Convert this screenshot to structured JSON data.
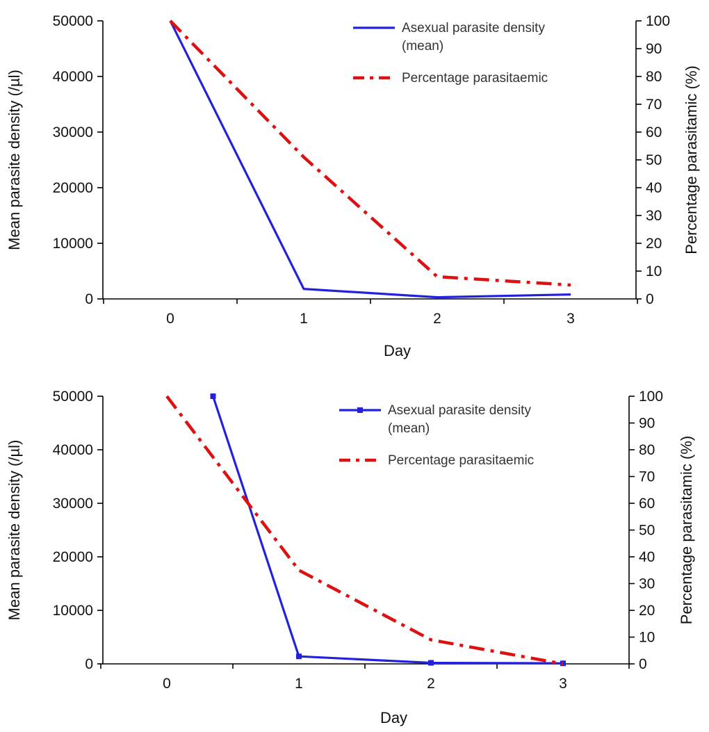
{
  "chart_data": [
    {
      "type": "line",
      "xlabel": "Day",
      "ylabel": "Mean parasite density (/µl)",
      "y2label": "Percentage parasitamic (%)",
      "x": [
        0,
        1,
        2,
        3
      ],
      "x_ticks": [
        "0",
        "1",
        "2",
        "3"
      ],
      "ylim": [
        0,
        50000
      ],
      "y_ticks": [
        "0",
        "10000",
        "20000",
        "30000",
        "40000",
        "50000"
      ],
      "y2lim": [
        0,
        100
      ],
      "y2_ticks": [
        "0",
        "10",
        "20",
        "30",
        "40",
        "50",
        "60",
        "70",
        "80",
        "90",
        "100"
      ],
      "legend_position": "top-right",
      "grid": false,
      "series": [
        {
          "name": "Asexual parasite density (mean)",
          "legend_lines": [
            "Asexual parasite density",
            "(mean)"
          ],
          "axis": "left",
          "color": "#2222dd",
          "style": "solid",
          "markers": false,
          "x": [
            0,
            1,
            2,
            3
          ],
          "values": [
            50000,
            1800,
            300,
            800
          ]
        },
        {
          "name": "Percentage parasitaemic",
          "legend_lines": [
            "Percentage parasitaemic"
          ],
          "axis": "right",
          "color": "#dd1111",
          "style": "dash-dot",
          "markers": false,
          "x": [
            0,
            1,
            2,
            3
          ],
          "values": [
            100,
            51,
            8,
            5
          ]
        }
      ]
    },
    {
      "type": "line",
      "xlabel": "Day",
      "ylabel": "Mean parasite density (/µl)",
      "y2label": "Percentage parasitamic (%)",
      "x": [
        0,
        1,
        2,
        3
      ],
      "x_ticks": [
        "0",
        "1",
        "2",
        "3"
      ],
      "ylim": [
        0,
        50000
      ],
      "y_ticks": [
        "0",
        "10000",
        "20000",
        "30000",
        "40000",
        "50000"
      ],
      "y2lim": [
        0,
        100
      ],
      "y2_ticks": [
        "0",
        "10",
        "20",
        "30",
        "40",
        "50",
        "60",
        "70",
        "80",
        "90",
        "100"
      ],
      "legend_position": "top-right",
      "grid": false,
      "series": [
        {
          "name": "Asexual parasite density (mean)",
          "legend_lines": [
            "Asexual parasite density",
            "(mean)"
          ],
          "axis": "left",
          "color": "#2222dd",
          "style": "solid",
          "markers": true,
          "x": [
            0.35,
            1,
            2,
            3
          ],
          "values": [
            50000,
            1400,
            200,
            100
          ]
        },
        {
          "name": "Percentage parasitaemic",
          "legend_lines": [
            "Percentage parasitaemic"
          ],
          "axis": "right",
          "color": "#dd1111",
          "style": "dash-dot",
          "markers": false,
          "x": [
            0,
            1,
            2,
            3
          ],
          "values": [
            100,
            35,
            9,
            0
          ]
        }
      ]
    }
  ]
}
